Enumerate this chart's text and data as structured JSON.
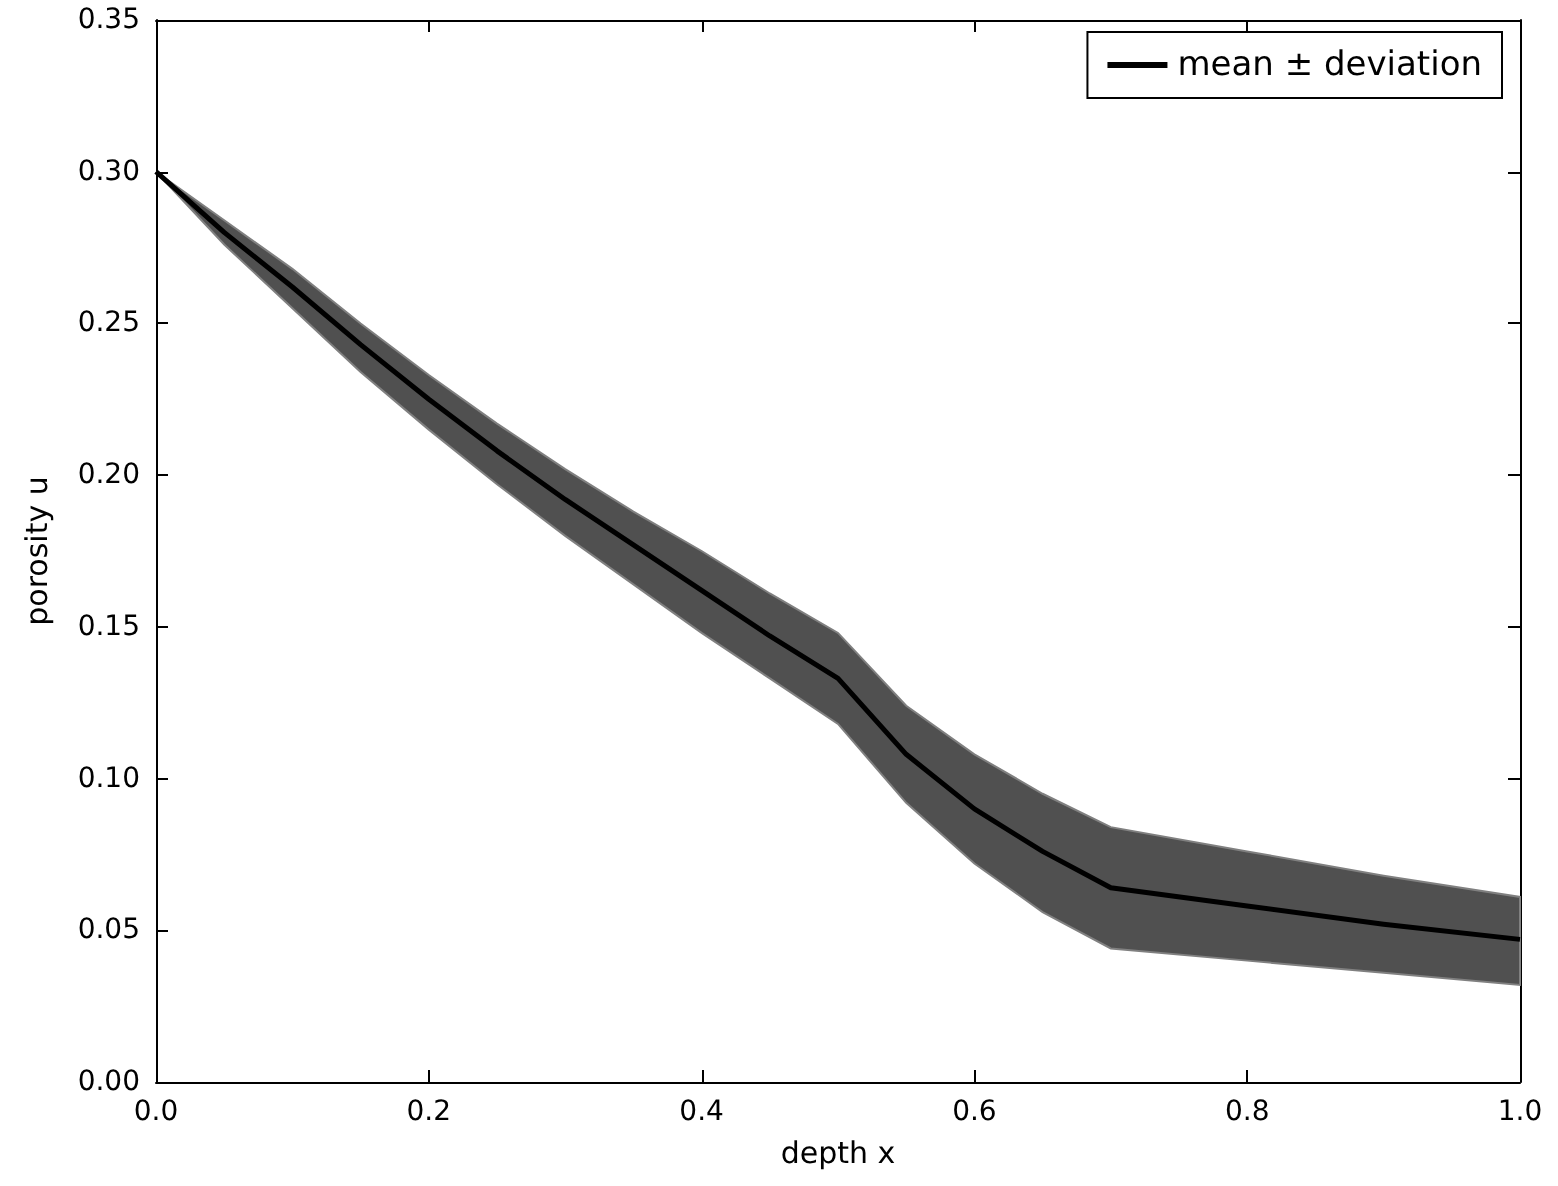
{
  "chart_data": {
    "type": "line",
    "xlabel": "depth x",
    "ylabel": "porosity u",
    "x": [
      0,
      0.05,
      0.1,
      0.15,
      0.2,
      0.25,
      0.3,
      0.35,
      0.4,
      0.45,
      0.5,
      0.55,
      0.6,
      0.65,
      0.7,
      0.8,
      0.9,
      1.0
    ],
    "series": [
      {
        "name": "mean ± deviation",
        "color": "#000000",
        "values": [
          0.3,
          0.28,
          0.262,
          0.243,
          0.225,
          0.208,
          0.192,
          0.177,
          0.162,
          0.147,
          0.133,
          0.108,
          0.09,
          0.076,
          0.064,
          0.058,
          0.052,
          0.047
        ],
        "lower": [
          0.3,
          0.276,
          0.255,
          0.234,
          0.215,
          0.197,
          0.18,
          0.164,
          0.148,
          0.133,
          0.118,
          0.092,
          0.072,
          0.056,
          0.044,
          0.04,
          0.036,
          0.032
        ],
        "upper": [
          0.3,
          0.284,
          0.268,
          0.25,
          0.233,
          0.217,
          0.202,
          0.188,
          0.175,
          0.161,
          0.148,
          0.124,
          0.108,
          0.095,
          0.084,
          0.076,
          0.068,
          0.061
        ]
      }
    ],
    "xlim": [
      0,
      1
    ],
    "ylim": [
      0,
      0.35
    ],
    "xticks": [
      {
        "value": 0,
        "label": "0.0"
      },
      0.2,
      0.4,
      0.6,
      0.8,
      {
        "value": 1,
        "label": "1.0"
      }
    ],
    "yticks": [
      {
        "value": 0,
        "label": "0.00"
      },
      0.05,
      {
        "value": 0.1,
        "label": "0.10"
      },
      0.15,
      {
        "value": 0.2,
        "label": "0.20"
      },
      0.25,
      {
        "value": 0.3,
        "label": "0.30"
      },
      0.35
    ],
    "legend": "top right",
    "marker": "none",
    "line_style": "solid",
    "grid": false
  }
}
